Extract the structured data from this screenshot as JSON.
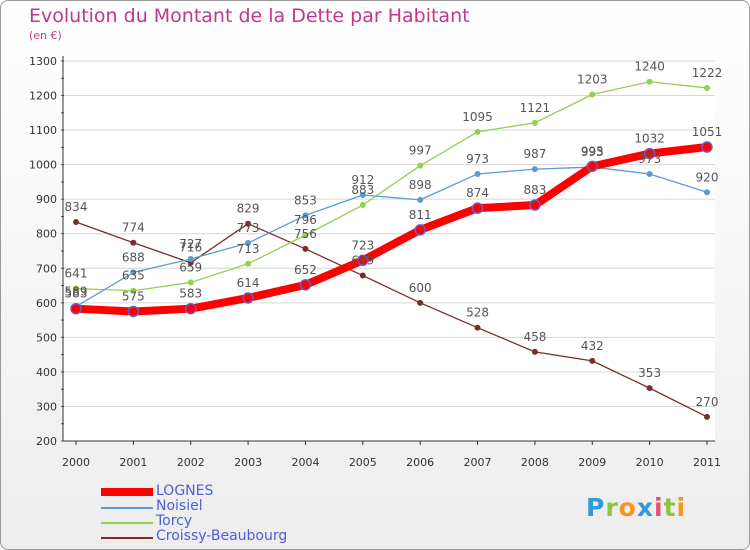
{
  "title": "Evolution du Montant de la Dette par Habitant",
  "subtitle": "(en €)",
  "logo": {
    "letters": [
      {
        "ch": "P",
        "color": "#2e9bd6"
      },
      {
        "ch": "r",
        "color": "#8cc63f"
      },
      {
        "ch": "o",
        "color": "#f7941d"
      },
      {
        "ch": "x",
        "color": "#2e9bd6"
      },
      {
        "ch": "i",
        "color": "#e94e77"
      },
      {
        "ch": "t",
        "color": "#8cc63f"
      },
      {
        "ch": "i",
        "color": "#f7941d"
      }
    ]
  },
  "chart_data": {
    "type": "line",
    "title": "Evolution du Montant de la Dette par Habitant",
    "subtitle": "(en €)",
    "x": [
      "2000",
      "2001",
      "2002",
      "2003",
      "2004",
      "2005",
      "2006",
      "2007",
      "2008",
      "2009",
      "2010",
      "2011"
    ],
    "ylim": [
      200,
      1300
    ],
    "yticks": [
      200,
      300,
      400,
      500,
      600,
      700,
      800,
      900,
      1000,
      1100,
      1200,
      1300
    ],
    "grid": true,
    "legend": "bottom-left",
    "series": [
      {
        "name": "LOGNES",
        "color": "#ff0000",
        "width": 8,
        "marker": 5,
        "values": [
          583,
          575,
          583,
          614,
          652,
          723,
          811,
          874,
          883,
          995,
          1032,
          1051
        ]
      },
      {
        "name": "Noisiel",
        "color": "#5b9bd5",
        "width": 1.3,
        "marker": 3,
        "values": [
          589,
          688,
          727,
          773,
          853,
          912,
          898,
          973,
          987,
          993,
          973,
          920
        ]
      },
      {
        "name": "Torcy",
        "color": "#92d050",
        "width": 1.3,
        "marker": 3,
        "values": [
          641,
          635,
          659,
          713,
          796,
          883,
          997,
          1095,
          1121,
          1203,
          1240,
          1222
        ]
      },
      {
        "name": "Croissy-Beaubourg",
        "color": "#7b2c2c",
        "width": 1.3,
        "marker": 3,
        "values": [
          834,
          774,
          716,
          829,
          756,
          679,
          600,
          528,
          458,
          432,
          353,
          270
        ]
      }
    ]
  }
}
